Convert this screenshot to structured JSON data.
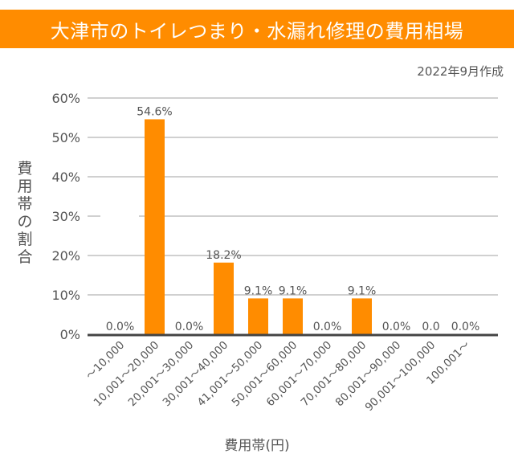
{
  "banner": {
    "title": "大津市のトイレつまり・水漏れ修理の費用相場",
    "color": "#FF8C00"
  },
  "date_note": "2022年9月作成",
  "chart_data": {
    "type": "bar",
    "title": "大津市のトイレつまり・水漏れ修理の費用相場",
    "subtitle": "2022年9月作成",
    "xlabel": "費用帯(円)",
    "ylabel": "費用帯の割合",
    "ylim": [
      0,
      60
    ],
    "yticks": [
      0,
      10,
      20,
      30,
      40,
      50,
      60
    ],
    "ytick_labels": [
      "0%",
      "10%",
      "20%",
      "30%",
      "40%",
      "50%",
      "60%"
    ],
    "grid": true,
    "legend": "none",
    "bar_color": "#FF8C00",
    "categories": [
      "～10,000",
      "10,001～20,000",
      "20,001～30,000",
      "30,001～40,000",
      "41,001～50,000",
      "50,001～60,000",
      "60,001～70,000",
      "70,001～80,000",
      "80,001～90,000",
      "90,001～100,000",
      "100,001～"
    ],
    "values": [
      0.0,
      54.6,
      0.0,
      18.2,
      9.1,
      9.1,
      0.0,
      9.1,
      0.0,
      0.0,
      0.0
    ],
    "data_labels": [
      "0.0%",
      "54.6%",
      "0.0%",
      "18.2%",
      "9.1%",
      "9.1%",
      "0.0%",
      "9.1%",
      "0.0%",
      "0.0",
      "0.0%"
    ]
  }
}
